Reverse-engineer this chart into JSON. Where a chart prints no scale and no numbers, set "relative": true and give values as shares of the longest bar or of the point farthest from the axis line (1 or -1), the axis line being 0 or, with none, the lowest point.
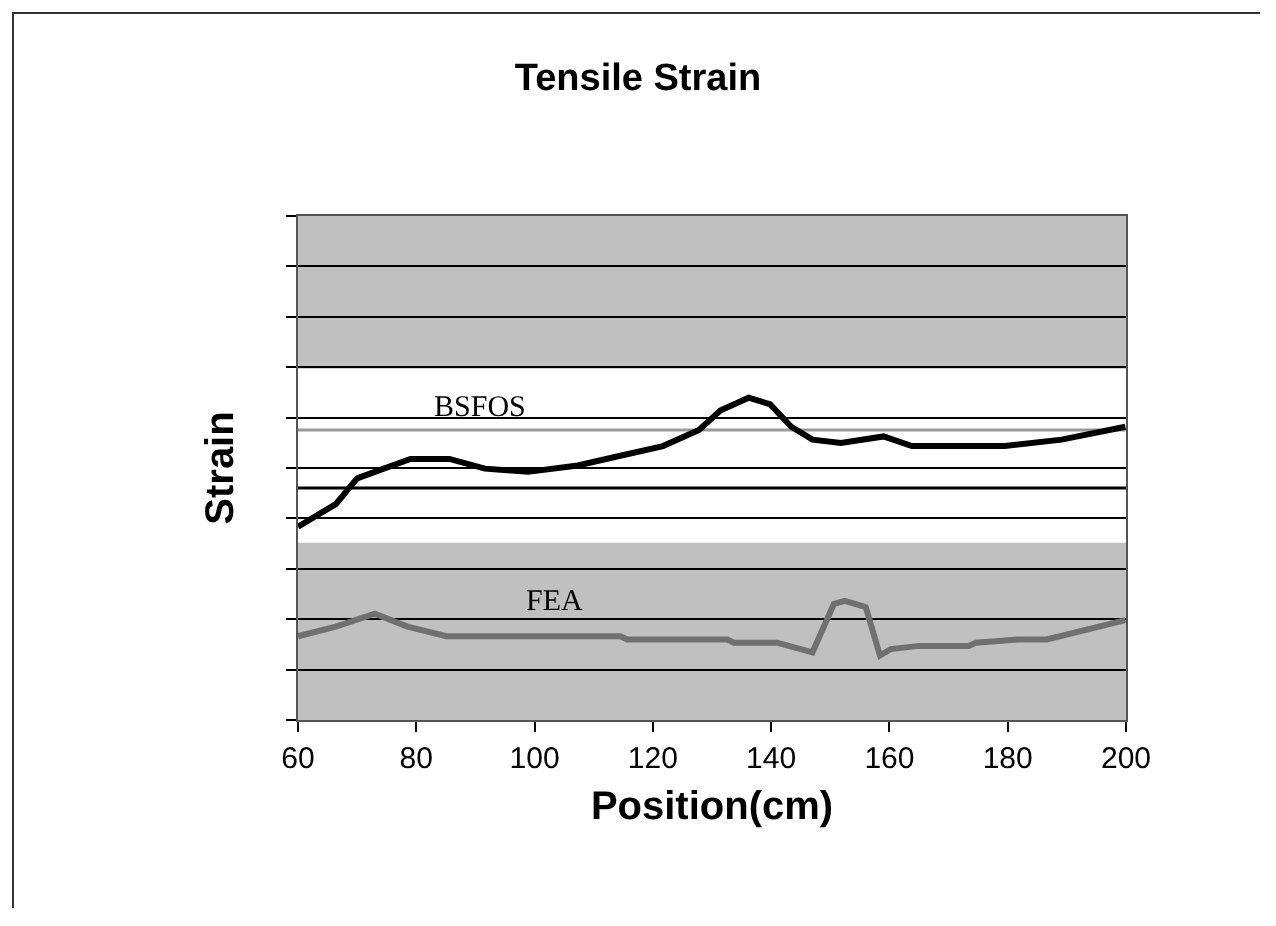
{
  "chart_data": {
    "type": "line",
    "title": "Tensile Strain",
    "xlabel": "Position(cm)",
    "ylabel": "Strain",
    "relative": true,
    "xlim": [
      60,
      200
    ],
    "xticks": [
      60,
      80,
      100,
      120,
      140,
      160,
      180,
      200
    ],
    "grid": "y",
    "legend": false,
    "series": [
      {
        "name": "BSFOS",
        "color": "#000000",
        "x": [
          60,
          66.4,
          70,
          73,
          79,
          85.6,
          91.6,
          98.9,
          107.3,
          114.5,
          121.7,
          127.8,
          131.4,
          136.2,
          139.8,
          143.4,
          147,
          151.8,
          159,
          163.8,
          179.5,
          189.1,
          199.9
        ],
        "values": [
          0.6,
          0.67,
          0.75,
          0.77,
          0.81,
          0.81,
          0.78,
          0.77,
          0.79,
          0.82,
          0.85,
          0.9,
          0.96,
          1,
          0.98,
          0.91,
          0.87,
          0.86,
          0.88,
          0.85,
          0.85,
          0.87,
          0.91
        ]
      },
      {
        "name": "FEA",
        "color": "#707070",
        "x": [
          60,
          66.4,
          73,
          78.5,
          85.1,
          114.5,
          115.7,
          132.6,
          133.7,
          141,
          147,
          150.6,
          152.4,
          154.2,
          156,
          158.4,
          160.2,
          165,
          173.4,
          174.6,
          181.8,
          186.6,
          199.9
        ],
        "values": [
          0.26,
          0.29,
          0.33,
          0.29,
          0.26,
          0.26,
          0.25,
          0.25,
          0.24,
          0.24,
          0.21,
          0.36,
          0.37,
          0.36,
          0.35,
          0.2,
          0.22,
          0.23,
          0.23,
          0.24,
          0.25,
          0.25,
          0.31
        ]
      }
    ],
    "bands": [
      {
        "axis": "y",
        "from": 0.55,
        "to": 1.09,
        "color": "#ffffff"
      }
    ],
    "ref_lines": [
      {
        "axis": "y",
        "value": 0.9,
        "color": "#999999"
      },
      {
        "axis": "y",
        "value": 0.72,
        "color": "#000000"
      }
    ]
  }
}
